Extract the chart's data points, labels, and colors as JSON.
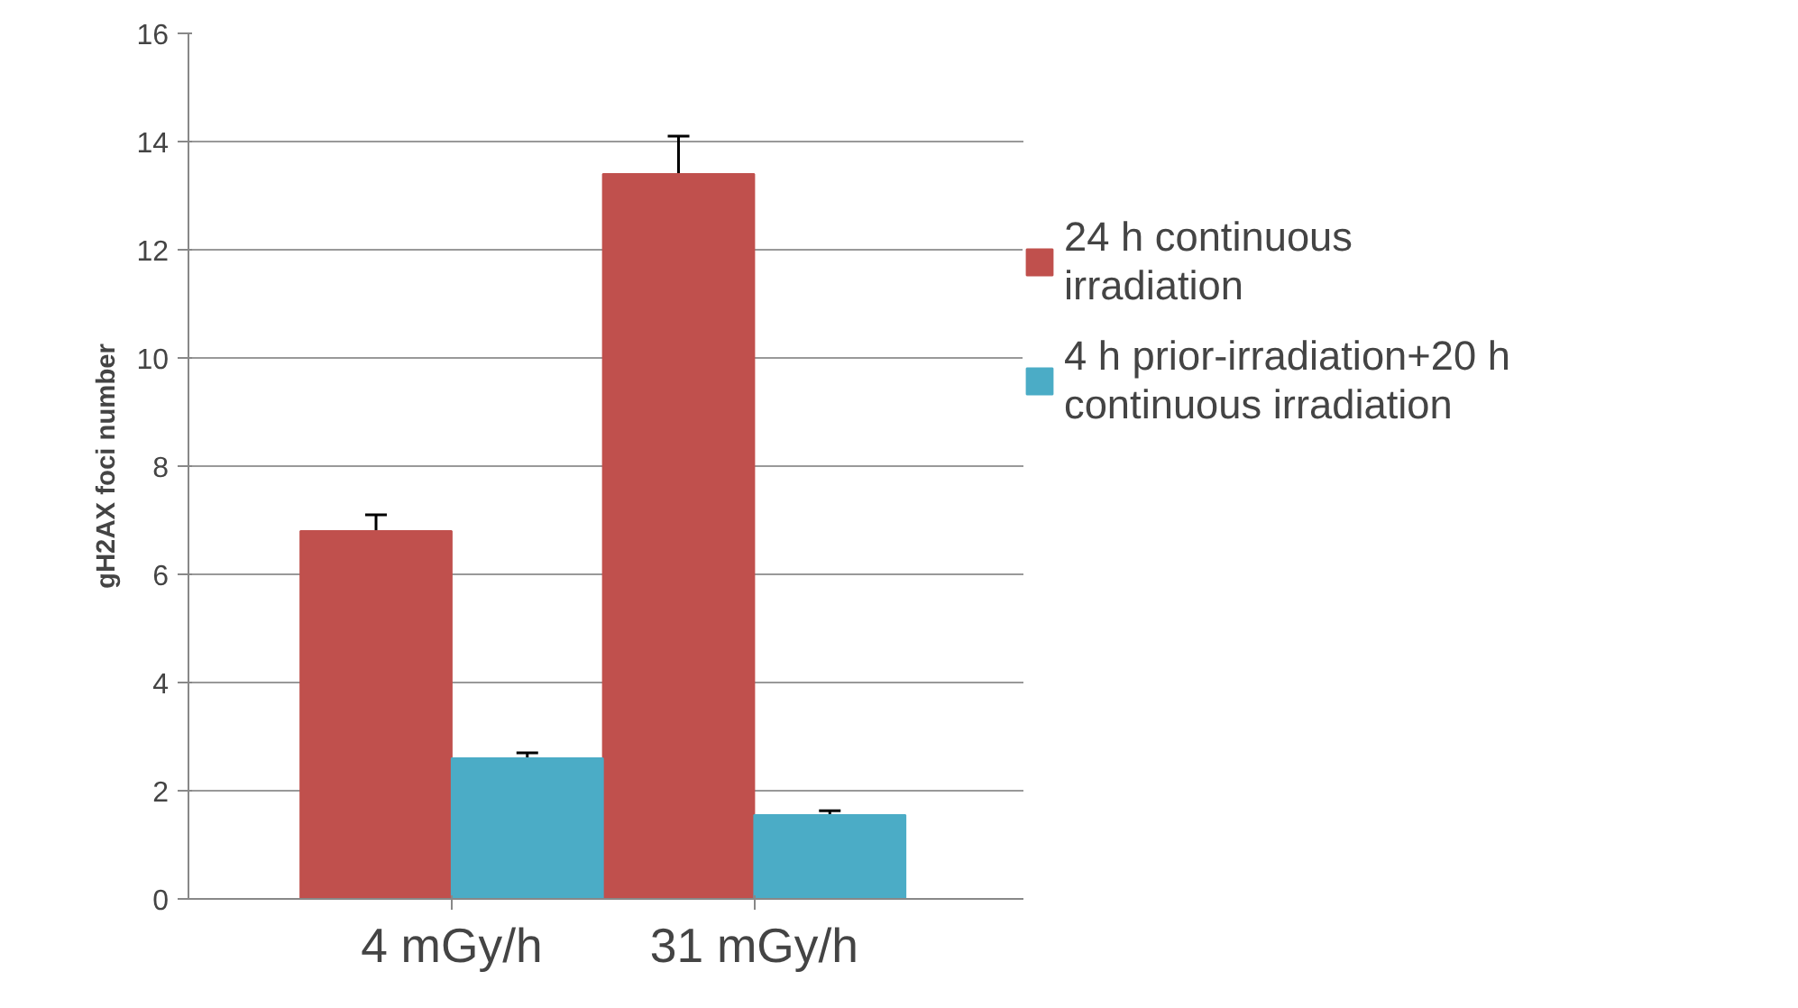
{
  "chart_data": {
    "type": "bar",
    "ylabel": "gH2AX foci number",
    "categories": [
      "4 mGy/h",
      "31 mGy/h"
    ],
    "series": [
      {
        "name": "24 h continuous irradiation",
        "color": "#c0504d",
        "values": [
          6.8,
          13.4
        ],
        "errors": [
          0.3,
          0.7
        ]
      },
      {
        "name": "4 h prior-irradiation+20 h continuous irradiation",
        "color": "#4bacc6",
        "values": [
          2.6,
          1.55
        ],
        "errors": [
          0.1,
          0.08
        ]
      }
    ],
    "ylim": [
      0,
      16
    ],
    "yticks": [
      0,
      2,
      4,
      6,
      8,
      10,
      12,
      14,
      16
    ],
    "grid": "y",
    "legend": "right"
  }
}
